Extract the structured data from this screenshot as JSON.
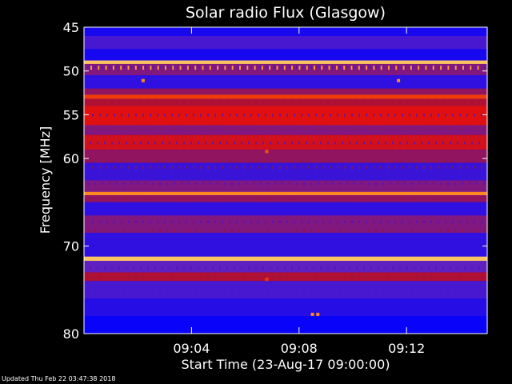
{
  "chart_data": {
    "type": "heatmap",
    "title": "Solar radio Flux (Glasgow)",
    "ylabel": "Frequency [MHz]",
    "xlabel": "Start Time (23-Aug-17 09:00:00)",
    "ylim": [
      45,
      80
    ],
    "y_inverted": true,
    "xlim_minutes": [
      0,
      15
    ],
    "y_ticks": [
      {
        "value": 45,
        "label": "45"
      },
      {
        "value": 50,
        "label": "50"
      },
      {
        "value": 55,
        "label": "55"
      },
      {
        "value": 60,
        "label": "60"
      },
      {
        "value": 70,
        "label": "70"
      },
      {
        "value": 80,
        "label": "80"
      }
    ],
    "x_ticks": [
      {
        "value": 4,
        "label": "09:04"
      },
      {
        "value": 8,
        "label": "09:08"
      },
      {
        "value": 12,
        "label": "09:12"
      }
    ],
    "colormap": [
      "#0000ff",
      "#6020c0",
      "#a01040",
      "#e01010",
      "#ff6a00",
      "#ffe080"
    ],
    "bands": [
      {
        "from": 45.0,
        "to": 46.0,
        "level": 0.05
      },
      {
        "from": 46.0,
        "to": 47.5,
        "level": 0.15
      },
      {
        "from": 47.5,
        "to": 48.8,
        "level": 0.05
      },
      {
        "from": 48.8,
        "to": 49.2,
        "level": 0.95
      },
      {
        "from": 49.2,
        "to": 50.5,
        "level": 0.3
      },
      {
        "from": 50.5,
        "to": 52.0,
        "level": 0.1
      },
      {
        "from": 52.0,
        "to": 52.7,
        "level": 0.35
      },
      {
        "from": 52.7,
        "to": 53.2,
        "level": 0.7
      },
      {
        "from": 53.2,
        "to": 54.0,
        "level": 0.45
      },
      {
        "from": 54.0,
        "to": 56.2,
        "level": 0.6
      },
      {
        "from": 56.2,
        "to": 57.3,
        "level": 0.3
      },
      {
        "from": 57.3,
        "to": 59.0,
        "level": 0.55
      },
      {
        "from": 59.0,
        "to": 60.5,
        "level": 0.35
      },
      {
        "from": 60.5,
        "to": 62.5,
        "level": 0.12
      },
      {
        "from": 62.5,
        "to": 63.8,
        "level": 0.3
      },
      {
        "from": 63.8,
        "to": 64.2,
        "level": 0.85
      },
      {
        "from": 64.2,
        "to": 65.0,
        "level": 0.35
      },
      {
        "from": 65.0,
        "to": 66.5,
        "level": 0.1
      },
      {
        "from": 66.5,
        "to": 68.5,
        "level": 0.3
      },
      {
        "from": 68.5,
        "to": 71.2,
        "level": 0.1
      },
      {
        "from": 71.2,
        "to": 71.7,
        "level": 0.95
      },
      {
        "from": 71.7,
        "to": 73.0,
        "level": 0.2
      },
      {
        "from": 73.0,
        "to": 74.0,
        "level": 0.45
      },
      {
        "from": 74.0,
        "to": 76.0,
        "level": 0.15
      },
      {
        "from": 76.0,
        "to": 78.0,
        "level": 0.08
      },
      {
        "from": 78.0,
        "to": 80.0,
        "level": 0.02
      }
    ],
    "spots": [
      {
        "t": 2.2,
        "f": 51.1,
        "level": 0.85
      },
      {
        "t": 11.7,
        "f": 51.1,
        "level": 0.85
      },
      {
        "t": 6.8,
        "f": 59.2,
        "level": 0.75
      },
      {
        "t": 6.8,
        "f": 73.8,
        "level": 0.7
      },
      {
        "t": 8.5,
        "f": 77.8,
        "level": 0.85
      },
      {
        "t": 8.7,
        "f": 77.8,
        "level": 0.85
      }
    ]
  },
  "footer": "Updated Thu Feb 22 03:47:38 2018"
}
